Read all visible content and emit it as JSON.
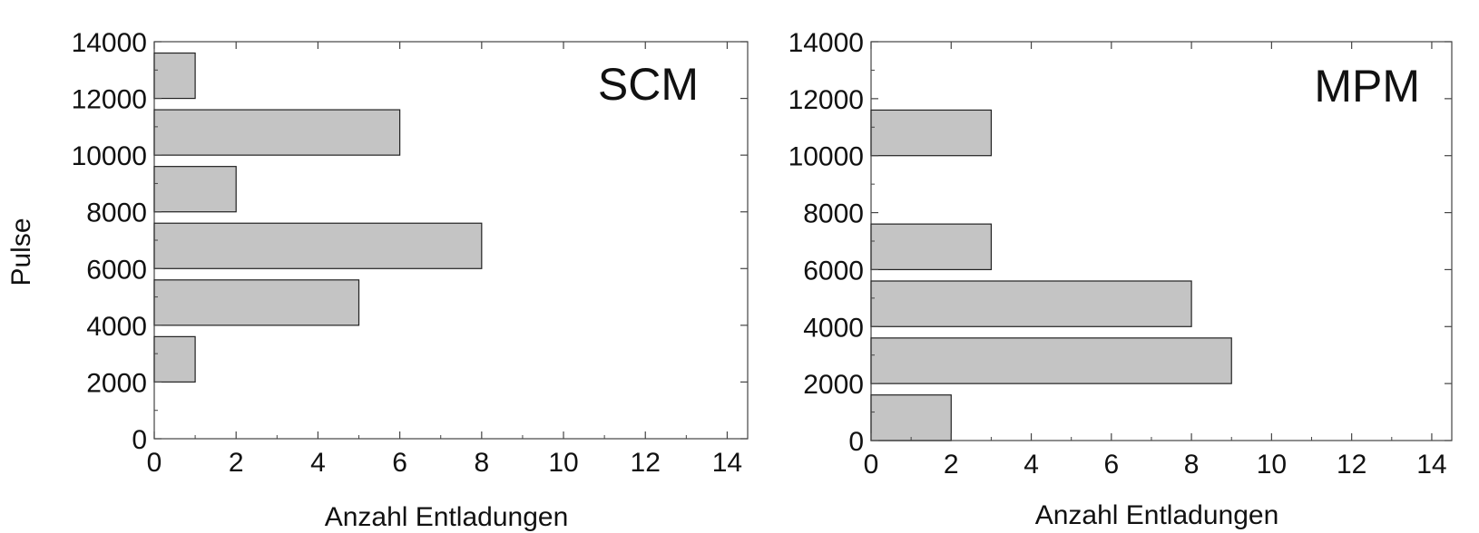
{
  "figure": {
    "ylabel": "Pulse",
    "xlabel": "Anzahl Entladungen"
  },
  "chart_data": [
    {
      "type": "bar",
      "orientation": "horizontal",
      "panel_label": "SCM",
      "xlabel": "Anzahl Entladungen",
      "ylabel": "Pulse",
      "xlim": [
        0,
        14.5
      ],
      "ylim": [
        0,
        14000
      ],
      "xticks": [
        0,
        2,
        4,
        6,
        8,
        10,
        12,
        14
      ],
      "yticks": [
        0,
        2000,
        4000,
        6000,
        8000,
        10000,
        12000,
        14000
      ],
      "bar_color": "#c4c4c4",
      "bars": [
        {
          "y_from": 2000,
          "y_to": 3600,
          "value": 1
        },
        {
          "y_from": 4000,
          "y_to": 5600,
          "value": 5
        },
        {
          "y_from": 6000,
          "y_to": 7600,
          "value": 8
        },
        {
          "y_from": 8000,
          "y_to": 9600,
          "value": 2
        },
        {
          "y_from": 10000,
          "y_to": 11600,
          "value": 6
        },
        {
          "y_from": 12000,
          "y_to": 13600,
          "value": 1
        }
      ]
    },
    {
      "type": "bar",
      "orientation": "horizontal",
      "panel_label": "MPM",
      "xlabel": "Anzahl Entladungen",
      "ylabel": "",
      "xlim": [
        0,
        14.5
      ],
      "ylim": [
        0,
        14000
      ],
      "xticks": [
        0,
        2,
        4,
        6,
        8,
        10,
        12,
        14
      ],
      "yticks": [
        0,
        2000,
        4000,
        6000,
        8000,
        10000,
        12000,
        14000
      ],
      "bar_color": "#c4c4c4",
      "bars": [
        {
          "y_from": 0,
          "y_to": 1600,
          "value": 2
        },
        {
          "y_from": 2000,
          "y_to": 3600,
          "value": 9
        },
        {
          "y_from": 4000,
          "y_to": 5600,
          "value": 8
        },
        {
          "y_from": 6000,
          "y_to": 7600,
          "value": 3
        },
        {
          "y_from": 10000,
          "y_to": 11600,
          "value": 3
        }
      ]
    }
  ]
}
